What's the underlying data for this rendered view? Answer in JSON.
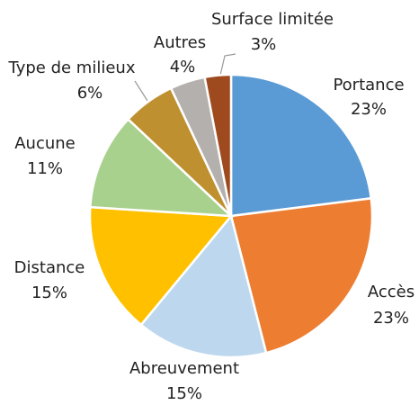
{
  "chart_data": {
    "type": "pie",
    "categories": [
      "Portance",
      "Accès",
      "Abreuvement",
      "Distance",
      "Aucune",
      "Type de milieux",
      "Autres",
      "Surface limitée"
    ],
    "values": [
      23,
      23,
      15,
      15,
      11,
      6,
      4,
      3
    ],
    "value_labels": [
      "23%",
      "23%",
      "15%",
      "15%",
      "11%",
      "6%",
      "4%",
      "3%"
    ],
    "colors": [
      "#5b9bd5",
      "#ed7d31",
      "#bdd7ee",
      "#ffc000",
      "#a9d18e",
      "#bf9030",
      "#b4b0ad",
      "#9e4a1e"
    ]
  }
}
